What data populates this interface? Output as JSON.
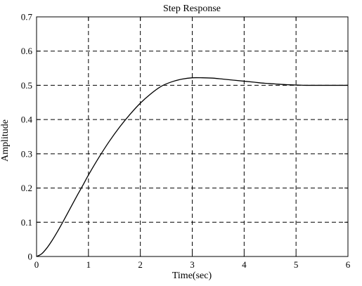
{
  "chart_data": {
    "type": "line",
    "title": "Step Response",
    "xlabel": "Time(sec)",
    "ylabel": "Amplitude",
    "xlim": [
      0,
      6
    ],
    "ylim": [
      0,
      0.7
    ],
    "xticks": [
      0,
      1,
      2,
      3,
      4,
      5,
      6
    ],
    "xtick_labels": [
      "0",
      "1",
      "2",
      "3",
      "4",
      "5",
      "6"
    ],
    "yticks": [
      0,
      0.1,
      0.2,
      0.3,
      0.4,
      0.5,
      0.6,
      0.7
    ],
    "ytick_labels": [
      "0",
      "0.1",
      "0.2",
      "0.3",
      "0.4",
      "0.5",
      "0.6",
      "0.7"
    ],
    "grid": true,
    "series": [
      {
        "x": [
          0,
          0.1,
          0.2,
          0.3,
          0.4,
          0.5,
          0.6,
          0.7,
          0.8,
          0.9,
          1.0,
          1.2,
          1.4,
          1.6,
          1.8,
          2.0,
          2.2,
          2.4,
          2.6,
          2.8,
          3.0,
          3.2,
          3.4,
          3.6,
          3.8,
          4.0,
          4.2,
          4.4,
          4.6,
          4.8,
          5.0,
          5.2,
          5.4,
          5.5,
          6.0
        ],
        "y": [
          0,
          0.008,
          0.025,
          0.047,
          0.072,
          0.099,
          0.127,
          0.155,
          0.183,
          0.21,
          0.238,
          0.289,
          0.336,
          0.378,
          0.415,
          0.448,
          0.475,
          0.497,
          0.51,
          0.518,
          0.522,
          0.522,
          0.521,
          0.518,
          0.515,
          0.512,
          0.509,
          0.506,
          0.504,
          0.502,
          0.501,
          0.5,
          0.5,
          0.5,
          0.5
        ]
      }
    ]
  }
}
